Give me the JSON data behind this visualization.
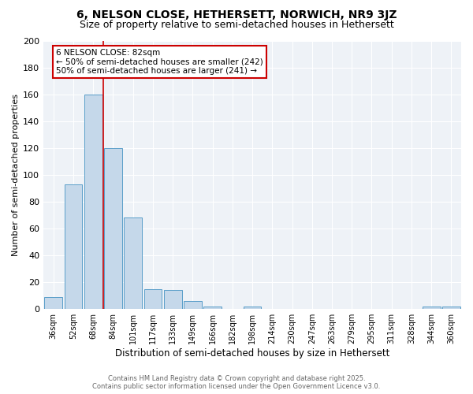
{
  "title": "6, NELSON CLOSE, HETHERSETT, NORWICH, NR9 3JZ",
  "subtitle": "Size of property relative to semi-detached houses in Hethersett",
  "xlabel": "Distribution of semi-detached houses by size in Hethersett",
  "ylabel": "Number of semi-detached properties",
  "categories": [
    "36sqm",
    "52sqm",
    "68sqm",
    "84sqm",
    "101sqm",
    "117sqm",
    "133sqm",
    "149sqm",
    "166sqm",
    "182sqm",
    "198sqm",
    "214sqm",
    "230sqm",
    "247sqm",
    "263sqm",
    "279sqm",
    "295sqm",
    "311sqm",
    "328sqm",
    "344sqm",
    "360sqm"
  ],
  "values": [
    9,
    93,
    160,
    120,
    68,
    15,
    14,
    6,
    2,
    0,
    2,
    0,
    0,
    0,
    0,
    0,
    0,
    0,
    0,
    2,
    2
  ],
  "bar_color": "#c5d8ea",
  "bar_edge_color": "#5a9ec9",
  "property_label": "6 NELSON CLOSE: 82sqm",
  "annotation_line1": "← 50% of semi-detached houses are smaller (242)",
  "annotation_line2": "50% of semi-detached houses are larger (241) →",
  "annotation_box_color": "#ffffff",
  "annotation_box_edge": "#cc0000",
  "vline_color": "#cc0000",
  "ylim": [
    0,
    200
  ],
  "yticks": [
    0,
    20,
    40,
    60,
    80,
    100,
    120,
    140,
    160,
    180,
    200
  ],
  "footer_line1": "Contains HM Land Registry data © Crown copyright and database right 2025.",
  "footer_line2": "Contains public sector information licensed under the Open Government Licence v3.0.",
  "bg_color": "#eef2f7",
  "title_fontsize": 10,
  "subtitle_fontsize": 9
}
